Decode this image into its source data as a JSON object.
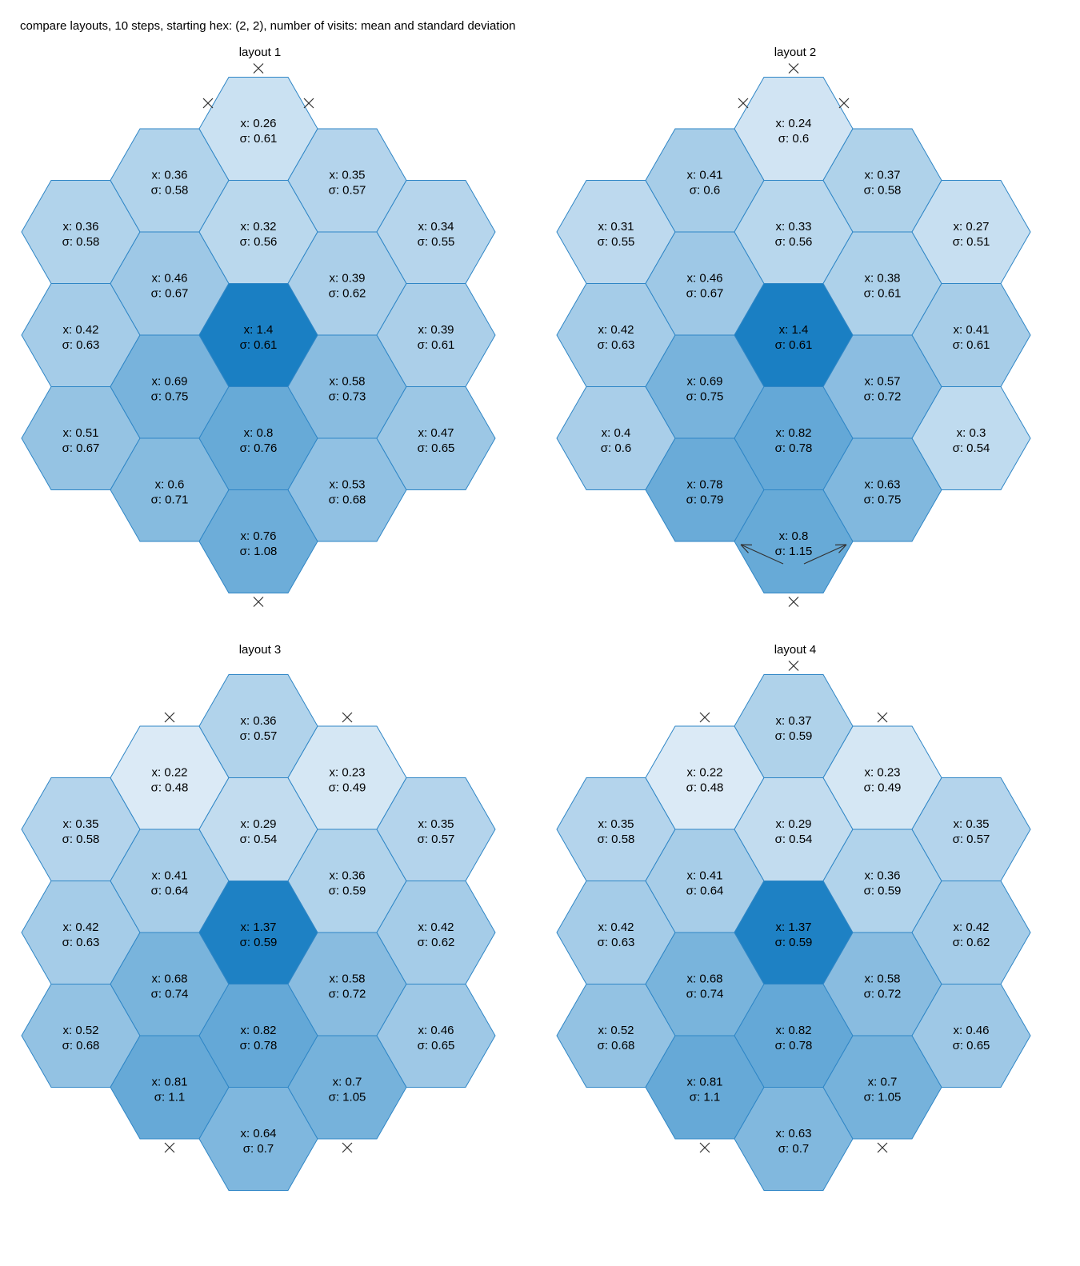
{
  "page_title": "compare layouts, 10 steps, starting hex: (2, 2), number of visits: mean and standard deviation",
  "colors": {
    "hex_edge": "#2f86c6",
    "start_edge": "#000000",
    "light": "#dbeaf6",
    "dark": "#1a7fc3",
    "marker": "#333333"
  },
  "mean_prefix": "x: ",
  "std_prefix": "σ: ",
  "panels": [
    {
      "title": "layout 1",
      "cells": [
        {
          "col": 0,
          "row": 1,
          "mean": "0.36",
          "std": "0.58"
        },
        {
          "col": 0,
          "row": 2,
          "mean": "0.42",
          "std": "0.63"
        },
        {
          "col": 0,
          "row": 3,
          "mean": "0.51",
          "std": "0.67"
        },
        {
          "col": 1,
          "row": 1,
          "mean": "0.36",
          "std": "0.58"
        },
        {
          "col": 1,
          "row": 2,
          "mean": "0.46",
          "std": "0.67"
        },
        {
          "col": 1,
          "row": 3,
          "mean": "0.69",
          "std": "0.75"
        },
        {
          "col": 1,
          "row": 4,
          "mean": "0.6",
          "std": "0.71"
        },
        {
          "col": 2,
          "row": 0,
          "mean": "0.26",
          "std": "0.61"
        },
        {
          "col": 2,
          "row": 1,
          "mean": "0.32",
          "std": "0.56"
        },
        {
          "col": 2,
          "row": 2,
          "mean": "1.4",
          "std": "0.61",
          "start": true
        },
        {
          "col": 2,
          "row": 3,
          "mean": "0.8",
          "std": "0.76"
        },
        {
          "col": 2,
          "row": 4,
          "mean": "0.76",
          "std": "1.08"
        },
        {
          "col": 3,
          "row": 1,
          "mean": "0.35",
          "std": "0.57"
        },
        {
          "col": 3,
          "row": 2,
          "mean": "0.39",
          "std": "0.62"
        },
        {
          "col": 3,
          "row": 3,
          "mean": "0.58",
          "std": "0.73"
        },
        {
          "col": 3,
          "row": 4,
          "mean": "0.53",
          "std": "0.68"
        },
        {
          "col": 4,
          "row": 1,
          "mean": "0.34",
          "std": "0.55"
        },
        {
          "col": 4,
          "row": 2,
          "mean": "0.39",
          "std": "0.61"
        },
        {
          "col": 4,
          "row": 3,
          "mean": "0.47",
          "std": "0.65"
        }
      ],
      "markers": [
        {
          "type": "cross",
          "col": 2,
          "row": 0,
          "dir": "top"
        },
        {
          "type": "cross",
          "col": 2,
          "row": 0,
          "dir": "upper-left"
        },
        {
          "type": "cross",
          "col": 2,
          "row": 0,
          "dir": "upper-right"
        },
        {
          "type": "cross",
          "col": 2,
          "row": 4,
          "dir": "bottom"
        }
      ]
    },
    {
      "title": "layout 2",
      "cells": [
        {
          "col": 0,
          "row": 1,
          "mean": "0.31",
          "std": "0.55"
        },
        {
          "col": 0,
          "row": 2,
          "mean": "0.42",
          "std": "0.63"
        },
        {
          "col": 0,
          "row": 3,
          "mean": "0.4",
          "std": "0.6"
        },
        {
          "col": 1,
          "row": 1,
          "mean": "0.41",
          "std": "0.6"
        },
        {
          "col": 1,
          "row": 2,
          "mean": "0.46",
          "std": "0.67"
        },
        {
          "col": 1,
          "row": 3,
          "mean": "0.69",
          "std": "0.75"
        },
        {
          "col": 1,
          "row": 4,
          "mean": "0.78",
          "std": "0.79"
        },
        {
          "col": 2,
          "row": 0,
          "mean": "0.24",
          "std": "0.6"
        },
        {
          "col": 2,
          "row": 1,
          "mean": "0.33",
          "std": "0.56"
        },
        {
          "col": 2,
          "row": 2,
          "mean": "1.4",
          "std": "0.61",
          "start": true
        },
        {
          "col": 2,
          "row": 3,
          "mean": "0.82",
          "std": "0.78"
        },
        {
          "col": 2,
          "row": 4,
          "mean": "0.8",
          "std": "1.15"
        },
        {
          "col": 3,
          "row": 1,
          "mean": "0.37",
          "std": "0.58"
        },
        {
          "col": 3,
          "row": 2,
          "mean": "0.38",
          "std": "0.61"
        },
        {
          "col": 3,
          "row": 3,
          "mean": "0.57",
          "std": "0.72"
        },
        {
          "col": 3,
          "row": 4,
          "mean": "0.63",
          "std": "0.75"
        },
        {
          "col": 4,
          "row": 1,
          "mean": "0.27",
          "std": "0.51"
        },
        {
          "col": 4,
          "row": 2,
          "mean": "0.41",
          "std": "0.61"
        },
        {
          "col": 4,
          "row": 3,
          "mean": "0.3",
          "std": "0.54"
        }
      ],
      "markers": [
        {
          "type": "cross",
          "col": 2,
          "row": 0,
          "dir": "top"
        },
        {
          "type": "cross",
          "col": 2,
          "row": 0,
          "dir": "upper-left"
        },
        {
          "type": "cross",
          "col": 2,
          "row": 0,
          "dir": "upper-right"
        },
        {
          "type": "cross",
          "col": 2,
          "row": 4,
          "dir": "bottom"
        },
        {
          "type": "arrow",
          "col": 2,
          "row": 4,
          "dir": "lower-left"
        },
        {
          "type": "arrow",
          "col": 2,
          "row": 4,
          "dir": "lower-right"
        }
      ]
    },
    {
      "title": "layout 3",
      "cells": [
        {
          "col": 0,
          "row": 1,
          "mean": "0.35",
          "std": "0.58"
        },
        {
          "col": 0,
          "row": 2,
          "mean": "0.42",
          "std": "0.63"
        },
        {
          "col": 0,
          "row": 3,
          "mean": "0.52",
          "std": "0.68"
        },
        {
          "col": 1,
          "row": 1,
          "mean": "0.22",
          "std": "0.48"
        },
        {
          "col": 1,
          "row": 2,
          "mean": "0.41",
          "std": "0.64"
        },
        {
          "col": 1,
          "row": 3,
          "mean": "0.68",
          "std": "0.74"
        },
        {
          "col": 1,
          "row": 4,
          "mean": "0.81",
          "std": "1.1"
        },
        {
          "col": 2,
          "row": 0,
          "mean": "0.36",
          "std": "0.57"
        },
        {
          "col": 2,
          "row": 1,
          "mean": "0.29",
          "std": "0.54"
        },
        {
          "col": 2,
          "row": 2,
          "mean": "1.37",
          "std": "0.59",
          "start": true
        },
        {
          "col": 2,
          "row": 3,
          "mean": "0.82",
          "std": "0.78"
        },
        {
          "col": 2,
          "row": 4,
          "mean": "0.64",
          "std": "0.7"
        },
        {
          "col": 3,
          "row": 1,
          "mean": "0.23",
          "std": "0.49"
        },
        {
          "col": 3,
          "row": 2,
          "mean": "0.36",
          "std": "0.59"
        },
        {
          "col": 3,
          "row": 3,
          "mean": "0.58",
          "std": "0.72"
        },
        {
          "col": 3,
          "row": 4,
          "mean": "0.7",
          "std": "1.05"
        },
        {
          "col": 4,
          "row": 1,
          "mean": "0.35",
          "std": "0.57"
        },
        {
          "col": 4,
          "row": 2,
          "mean": "0.42",
          "std": "0.62"
        },
        {
          "col": 4,
          "row": 3,
          "mean": "0.46",
          "std": "0.65"
        }
      ],
      "markers": [
        {
          "type": "cross",
          "col": 1,
          "row": 1,
          "dir": "top"
        },
        {
          "type": "cross",
          "col": 3,
          "row": 1,
          "dir": "top"
        },
        {
          "type": "cross",
          "col": 1,
          "row": 4,
          "dir": "bottom"
        },
        {
          "type": "cross",
          "col": 3,
          "row": 4,
          "dir": "bottom"
        }
      ]
    },
    {
      "title": "layout 4",
      "cells": [
        {
          "col": 0,
          "row": 1,
          "mean": "0.35",
          "std": "0.58"
        },
        {
          "col": 0,
          "row": 2,
          "mean": "0.42",
          "std": "0.63"
        },
        {
          "col": 0,
          "row": 3,
          "mean": "0.52",
          "std": "0.68"
        },
        {
          "col": 1,
          "row": 1,
          "mean": "0.22",
          "std": "0.48"
        },
        {
          "col": 1,
          "row": 2,
          "mean": "0.41",
          "std": "0.64"
        },
        {
          "col": 1,
          "row": 3,
          "mean": "0.68",
          "std": "0.74"
        },
        {
          "col": 1,
          "row": 4,
          "mean": "0.81",
          "std": "1.1"
        },
        {
          "col": 2,
          "row": 0,
          "mean": "0.37",
          "std": "0.59"
        },
        {
          "col": 2,
          "row": 1,
          "mean": "0.29",
          "std": "0.54"
        },
        {
          "col": 2,
          "row": 2,
          "mean": "1.37",
          "std": "0.59",
          "start": true
        },
        {
          "col": 2,
          "row": 3,
          "mean": "0.82",
          "std": "0.78"
        },
        {
          "col": 2,
          "row": 4,
          "mean": "0.63",
          "std": "0.7"
        },
        {
          "col": 3,
          "row": 1,
          "mean": "0.23",
          "std": "0.49"
        },
        {
          "col": 3,
          "row": 2,
          "mean": "0.36",
          "std": "0.59"
        },
        {
          "col": 3,
          "row": 3,
          "mean": "0.58",
          "std": "0.72"
        },
        {
          "col": 3,
          "row": 4,
          "mean": "0.7",
          "std": "1.05"
        },
        {
          "col": 4,
          "row": 1,
          "mean": "0.35",
          "std": "0.57"
        },
        {
          "col": 4,
          "row": 2,
          "mean": "0.42",
          "std": "0.62"
        },
        {
          "col": 4,
          "row": 3,
          "mean": "0.46",
          "std": "0.65"
        }
      ],
      "markers": [
        {
          "type": "cross",
          "col": 2,
          "row": 0,
          "dir": "top"
        },
        {
          "type": "cross",
          "col": 1,
          "row": 1,
          "dir": "top"
        },
        {
          "type": "cross",
          "col": 3,
          "row": 1,
          "dir": "top"
        },
        {
          "type": "cross",
          "col": 1,
          "row": 4,
          "dir": "bottom"
        },
        {
          "type": "cross",
          "col": 3,
          "row": 4,
          "dir": "bottom"
        }
      ]
    }
  ]
}
